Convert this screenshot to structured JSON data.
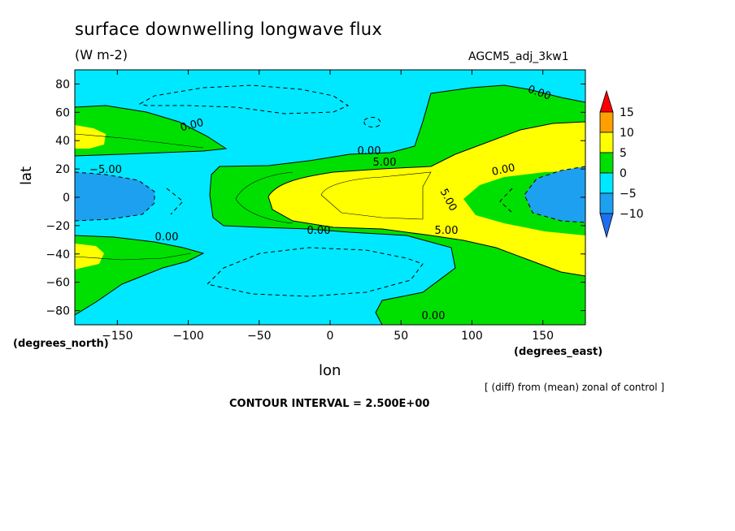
{
  "chart_data": {
    "type": "contour",
    "title": "surface downwelling longwave flux",
    "units": "(W m-2)",
    "experiment": "AGCM5_adj_3kw1",
    "xlabel": "lon",
    "ylabel": "lat",
    "xunits": "(degrees_east)",
    "yunits": "(degrees_north)",
    "xlim": [
      -180,
      180
    ],
    "ylim": [
      -90,
      90
    ],
    "x_ticks": [
      -150,
      -100,
      -50,
      0,
      50,
      100,
      150
    ],
    "y_ticks": [
      80,
      60,
      40,
      20,
      0,
      -20,
      -40,
      -60,
      -80
    ],
    "contour_interval": 2.5,
    "colorbar": {
      "levels": [
        -10,
        -5,
        0,
        5,
        10,
        15
      ],
      "colors": [
        "#1e6ff0",
        "#1ea0f0",
        "#00e8ff",
        "#00e000",
        "#ffff00",
        "#ffa000",
        "#ff0000"
      ]
    },
    "contour_labels": [
      "0.00",
      "0.00",
      "0.00",
      "0.00",
      "0.00",
      "0.00",
      "0.00",
      "-5.00",
      "5.00",
      "5.00",
      "5.00"
    ],
    "note": "[ (diff) from (mean) zonal of control ]",
    "interval_text": "CONTOUR INTERVAL = 2.500E+00"
  }
}
